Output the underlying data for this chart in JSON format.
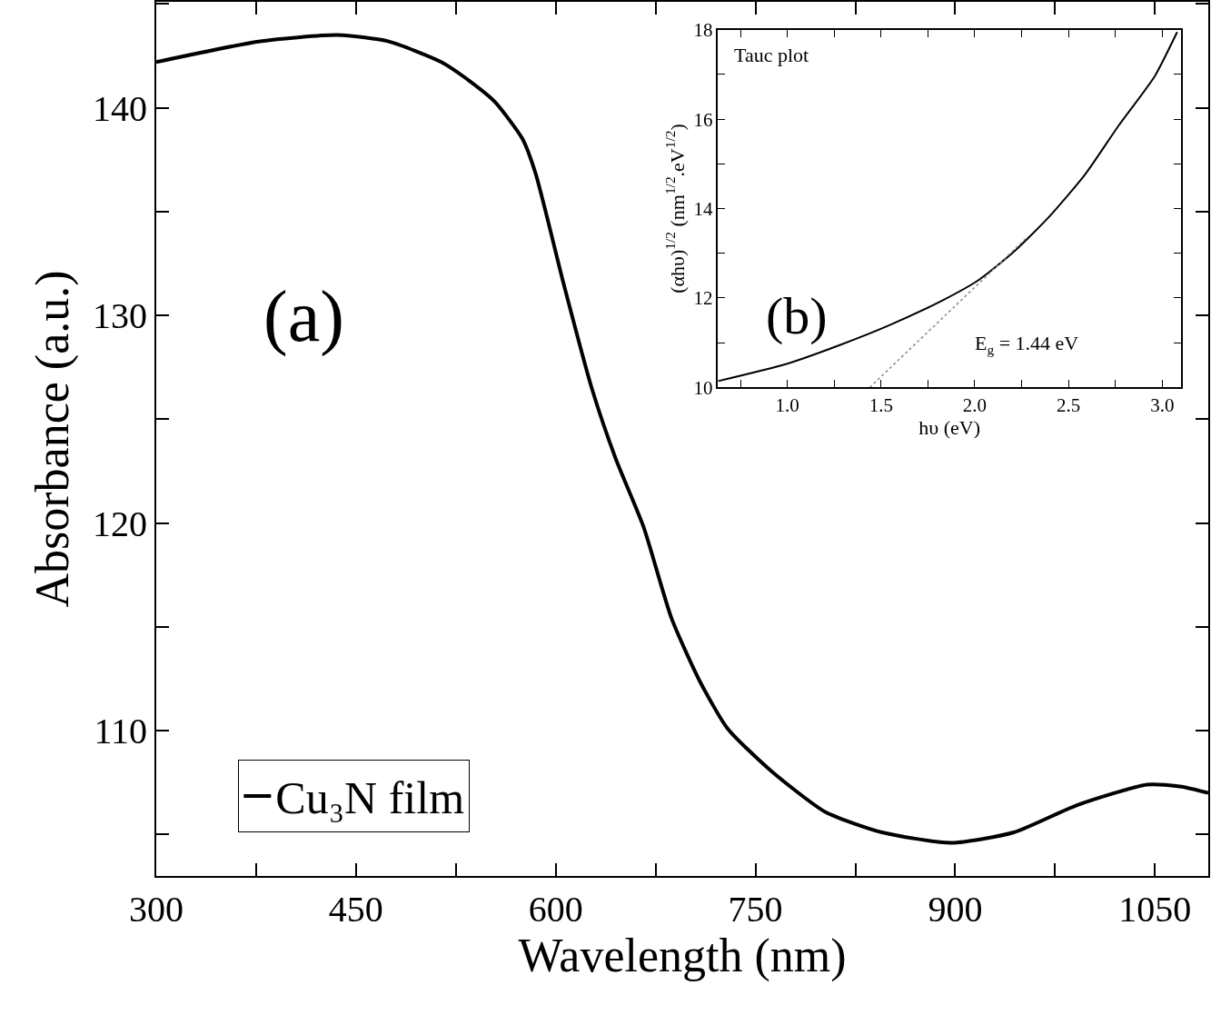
{
  "chart_data": [
    {
      "type": "line",
      "xlabel": "Wavelength (nm)",
      "ylabel": "Absorbance (a.u.)",
      "annotations": [
        "(a)"
      ],
      "legend": "bottom left",
      "xlim": [
        300,
        1090
      ],
      "ylim": [
        103,
        145.1
      ],
      "xticks": [
        300,
        {
          "value": 375,
          "label": null
        },
        450,
        {
          "value": 525,
          "label": null
        },
        600,
        {
          "value": 675,
          "label": null
        },
        750,
        {
          "value": 825,
          "label": null
        },
        900,
        {
          "value": 975,
          "label": null
        },
        1050
      ],
      "yticks": [
        {
          "value": 105,
          "label": null
        },
        110,
        {
          "value": 115,
          "label": null
        },
        120,
        {
          "value": 125,
          "label": null
        },
        130,
        {
          "value": 135,
          "label": null
        },
        140,
        {
          "value": 145,
          "label": null
        }
      ],
      "series": [
        {
          "name": "Cu₃N film",
          "color": "#000000",
          "line_style": "solid",
          "x": [
            300,
            378,
            436,
            474,
            514,
            535,
            554,
            575,
            585,
            606,
            627,
            645,
            666,
            687,
            708,
            729,
            761,
            802,
            845,
            897,
            944,
            991,
            1044,
            1070,
            1090
          ],
          "values": [
            142.2,
            143.2,
            143.5,
            143.2,
            142.2,
            141.3,
            140.3,
            138.5,
            136.8,
            131.5,
            126.5,
            123.1,
            119.8,
            115.4,
            112.4,
            110.1,
            108.1,
            106.1,
            105.1,
            104.6,
            105.1,
            106.4,
            107.4,
            107.3,
            107.0
          ]
        }
      ]
    },
    {
      "type": "line",
      "xlabel": "hυ (eV)",
      "ylabel": "(αhυ)$^{1/2}$ (nm$^{1/2}$.eV$^{1/2}$)",
      "annotations": [
        "(b)",
        "Tauc plot",
        "E$_{g}$ = 1.44 eV"
      ],
      "legend": false,
      "xlim": [
        0.63,
        3.1
      ],
      "ylim": [
        10,
        18
      ],
      "xticks": [
        {
          "value": 0.75,
          "label": null
        },
        {
          "value": 1.0,
          "label": "1.0"
        },
        {
          "value": 1.25,
          "label": null
        },
        {
          "value": 1.5,
          "label": "1.5"
        },
        {
          "value": 1.75,
          "label": null
        },
        {
          "value": 2.0,
          "label": "2.0"
        },
        {
          "value": 2.25,
          "label": null
        },
        {
          "value": 2.5,
          "label": "2.5"
        },
        {
          "value": 2.75,
          "label": null
        },
        {
          "value": 3.0,
          "label": "3.0"
        }
      ],
      "yticks": [
        10,
        {
          "value": 11,
          "label": null
        },
        12,
        {
          "value": 13,
          "label": null
        },
        14,
        {
          "value": 15,
          "label": null
        },
        16,
        {
          "value": 17,
          "label": null
        },
        18
      ],
      "series": [
        {
          "color": "#000000",
          "line_style": "solid",
          "x": [
            0.63,
            1.0,
            1.27,
            1.55,
            1.83,
            2.02,
            2.21,
            2.4,
            2.59,
            2.77,
            2.96,
            3.08
          ],
          "values": [
            10.14,
            10.53,
            10.93,
            11.4,
            11.95,
            12.4,
            13.04,
            13.83,
            14.77,
            15.87,
            16.96,
            17.95
          ]
        },
        {
          "type": "line",
          "color": "#888888",
          "line_style": "dotted",
          "x": [
            1.44,
            2.28
          ],
          "values": [
            10,
            13.36
          ]
        }
      ]
    }
  ]
}
